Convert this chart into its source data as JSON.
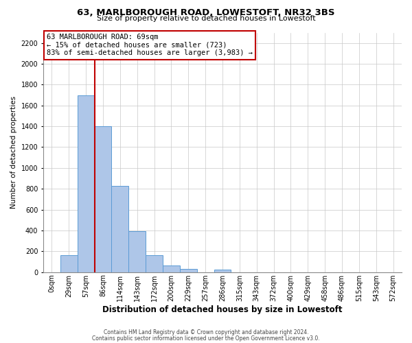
{
  "title": "63, MARLBOROUGH ROAD, LOWESTOFT, NR32 3BS",
  "subtitle": "Size of property relative to detached houses in Lowestoft",
  "xlabel": "Distribution of detached houses by size in Lowestoft",
  "ylabel": "Number of detached properties",
  "bar_labels": [
    "0sqm",
    "29sqm",
    "57sqm",
    "86sqm",
    "114sqm",
    "143sqm",
    "172sqm",
    "200sqm",
    "229sqm",
    "257sqm",
    "286sqm",
    "315sqm",
    "343sqm",
    "372sqm",
    "400sqm",
    "429sqm",
    "458sqm",
    "486sqm",
    "515sqm",
    "543sqm",
    "572sqm"
  ],
  "bar_values": [
    0,
    160,
    1700,
    1400,
    830,
    390,
    165,
    65,
    30,
    0,
    25,
    0,
    0,
    0,
    0,
    0,
    0,
    0,
    0,
    0,
    0
  ],
  "bar_color": "#aec6e8",
  "bar_edge_color": "#5b9bd5",
  "vline_x": 2.5,
  "vline_color": "#c00000",
  "ylim": [
    0,
    2300
  ],
  "yticks": [
    0,
    200,
    400,
    600,
    800,
    1000,
    1200,
    1400,
    1600,
    1800,
    2000,
    2200
  ],
  "annotation_title": "63 MARLBOROUGH ROAD: 69sqm",
  "annotation_line1": "← 15% of detached houses are smaller (723)",
  "annotation_line2": "83% of semi-detached houses are larger (3,983) →",
  "annotation_box_color": "#c00000",
  "footer1": "Contains HM Land Registry data © Crown copyright and database right 2024.",
  "footer2": "Contains public sector information licensed under the Open Government Licence v3.0.",
  "bg_color": "#ffffff",
  "grid_color": "#c8c8c8",
  "title_fontsize": 9.5,
  "subtitle_fontsize": 8.0,
  "ylabel_fontsize": 7.5,
  "xlabel_fontsize": 8.5,
  "tick_fontsize": 7,
  "annotation_fontsize": 7.5,
  "footer_fontsize": 5.5
}
